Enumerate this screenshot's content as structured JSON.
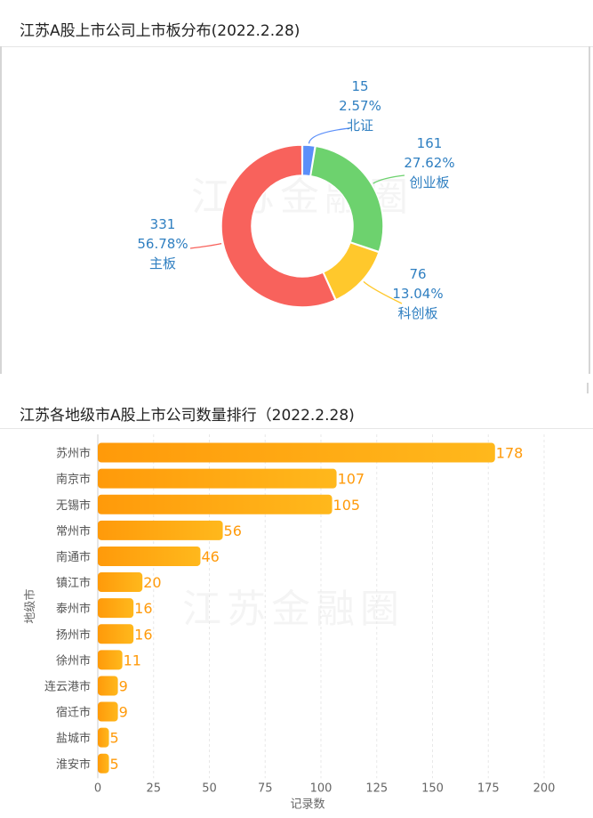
{
  "donut": {
    "title": "江苏A股上市公司上市板分布(2022.2.28)",
    "watermark": "江苏金融圈",
    "chart_data": {
      "type": "pie",
      "variant": "donut",
      "title": "江苏A股上市公司上市板分布(2022.2.28)",
      "slices": [
        {
          "label": "北证",
          "value": 15,
          "percent": "2.57%",
          "color": "#5b8ff9"
        },
        {
          "label": "创业板",
          "value": 161,
          "percent": "27.62%",
          "color": "#6dd26e"
        },
        {
          "label": "科创板",
          "value": 76,
          "percent": "13.04%",
          "color": "#ffc82c"
        },
        {
          "label": "主板",
          "value": 331,
          "percent": "56.78%",
          "color": "#f8625c"
        }
      ],
      "label_color": "#2f7fc1"
    }
  },
  "bars": {
    "title": "江苏各地级市A股上市公司数量排行（2022.2.28)",
    "watermark": "江苏金融圈",
    "chart_data": {
      "type": "bar",
      "orientation": "horizontal",
      "title": "江苏各地级市A股上市公司数量排行（2022.2.28)",
      "categories": [
        "苏州市",
        "南京市",
        "无锡市",
        "常州市",
        "南通市",
        "镇江市",
        "泰州市",
        "扬州市",
        "徐州市",
        "连云港市",
        "宿迁市",
        "盐城市",
        "淮安市"
      ],
      "values": [
        178,
        107,
        105,
        56,
        46,
        20,
        16,
        16,
        11,
        9,
        9,
        5,
        5
      ],
      "xlabel": "记录数",
      "ylabel": "地级市",
      "xlim": [
        0,
        200
      ],
      "xticks": [
        0,
        25,
        50,
        75,
        100,
        125,
        150,
        175,
        200
      ],
      "grid": true,
      "bar_color": "#ff9a0a",
      "bar_color_light": "#ffb81c",
      "value_label_color": "#ff9a0a"
    }
  }
}
